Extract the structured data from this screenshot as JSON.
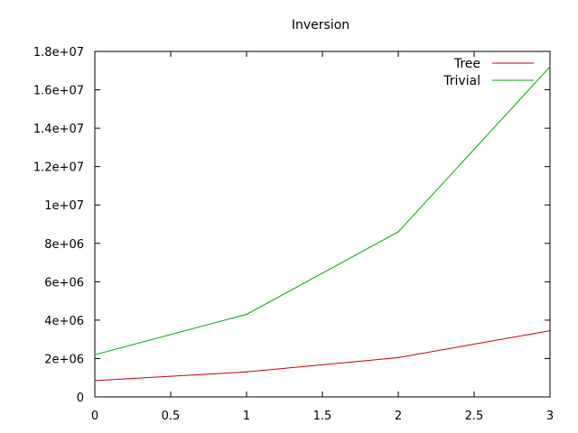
{
  "chart_data": {
    "type": "line",
    "title": "Inversion",
    "xlabel": "",
    "ylabel": "",
    "xlim": [
      0,
      3
    ],
    "ylim": [
      0,
      18000000
    ],
    "x_ticks": [
      0,
      0.5,
      1,
      1.5,
      2,
      2.5,
      3
    ],
    "x_tick_labels": [
      "0",
      "0.5",
      "1",
      "1.5",
      "2",
      "2.5",
      "3"
    ],
    "y_ticks": [
      0,
      2000000,
      4000000,
      6000000,
      8000000,
      10000000,
      12000000,
      14000000,
      16000000,
      18000000
    ],
    "y_tick_labels": [
      "0",
      "2e+06",
      "4e+06",
      "6e+06",
      "8e+06",
      "1e+07",
      "1.2e+07",
      "1.4e+07",
      "1.6e+07",
      "1.8e+07"
    ],
    "grid": false,
    "legend_position": "top-right",
    "x": [
      0,
      1,
      2,
      3
    ],
    "series": [
      {
        "name": "Tree",
        "color": "#cc0000",
        "values": [
          850000,
          1300000,
          2050000,
          3450000
        ]
      },
      {
        "name": "Trivial",
        "color": "#00aa00",
        "values": [
          2200000,
          4300000,
          8600000,
          17200000
        ]
      }
    ]
  }
}
